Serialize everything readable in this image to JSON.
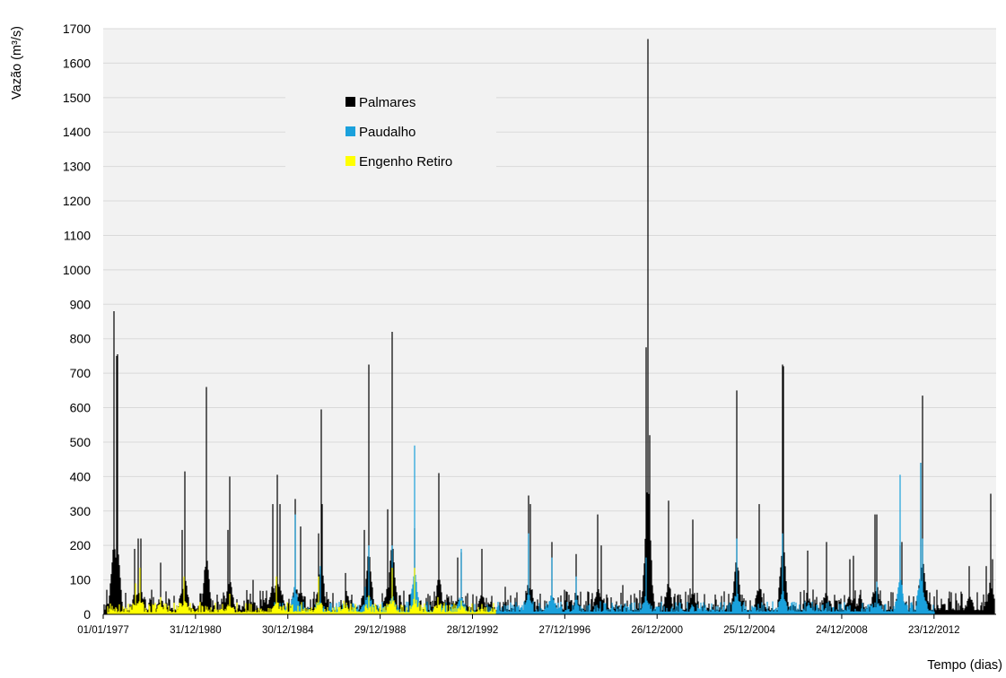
{
  "chart_data": {
    "type": "area",
    "title": "",
    "xlabel": "Tempo (dias)",
    "ylabel": "Vazão (m³/s)",
    "ylim": [
      0,
      1700
    ],
    "yticks": [
      0,
      100,
      200,
      300,
      400,
      500,
      600,
      700,
      800,
      900,
      1000,
      1100,
      1200,
      1300,
      1400,
      1500,
      1600,
      1700
    ],
    "xlim": [
      "1977-01-01",
      "2015-09-01"
    ],
    "xticks": [
      {
        "date": "1977-01-01",
        "label": "01/01/1977"
      },
      {
        "date": "1980-12-31",
        "label": "31/12/1980"
      },
      {
        "date": "1984-12-30",
        "label": "30/12/1984"
      },
      {
        "date": "1988-12-29",
        "label": "29/12/1988"
      },
      {
        "date": "1992-12-28",
        "label": "28/12/1992"
      },
      {
        "date": "1996-12-27",
        "label": "27/12/1996"
      },
      {
        "date": "2000-12-26",
        "label": "26/12/2000"
      },
      {
        "date": "2004-12-25",
        "label": "25/12/2004"
      },
      {
        "date": "2008-12-24",
        "label": "24/12/2008"
      },
      {
        "date": "2012-12-23",
        "label": "23/12/2012"
      }
    ],
    "grid": true,
    "legend_position": "top-left",
    "series": [
      {
        "name": "Palmares",
        "color": "#000000",
        "peaks": [
          [
            "1977-06-20",
            880
          ],
          [
            "1977-08-01",
            750
          ],
          [
            "1977-08-15",
            755
          ],
          [
            "1978-05-10",
            190
          ],
          [
            "1978-07-10",
            220
          ],
          [
            "1978-08-20",
            220
          ],
          [
            "1979-07-01",
            150
          ],
          [
            "1980-06-01",
            245
          ],
          [
            "1980-07-10",
            415
          ],
          [
            "1981-06-20",
            660
          ],
          [
            "1982-06-01",
            245
          ],
          [
            "1982-07-01",
            400
          ],
          [
            "1983-07-01",
            100
          ],
          [
            "1984-05-10",
            320
          ],
          [
            "1984-07-20",
            405
          ],
          [
            "1984-09-01",
            320
          ],
          [
            "1985-05-01",
            335
          ],
          [
            "1985-07-20",
            255
          ],
          [
            "1986-05-01",
            235
          ],
          [
            "1986-06-10",
            595
          ],
          [
            "1986-07-01",
            320
          ],
          [
            "1987-07-01",
            120
          ],
          [
            "1988-04-20",
            245
          ],
          [
            "1988-07-01",
            725
          ],
          [
            "1989-05-01",
            305
          ],
          [
            "1989-07-01",
            820
          ],
          [
            "1990-07-01",
            250
          ],
          [
            "1991-07-20",
            410
          ],
          [
            "1992-05-10",
            165
          ],
          [
            "1992-07-01",
            180
          ],
          [
            "1993-06-01",
            190
          ],
          [
            "1994-06-01",
            80
          ],
          [
            "1995-06-01",
            345
          ],
          [
            "1995-07-01",
            320
          ],
          [
            "1996-06-01",
            210
          ],
          [
            "1997-07-01",
            175
          ],
          [
            "1998-06-01",
            290
          ],
          [
            "1998-07-20",
            200
          ],
          [
            "1999-07-01",
            85
          ],
          [
            "2000-04-01",
            70
          ],
          [
            "2000-07-01",
            775
          ],
          [
            "2000-08-01",
            1670
          ],
          [
            "2000-09-01",
            520
          ],
          [
            "2001-07-01",
            330
          ],
          [
            "2002-06-01",
            75
          ],
          [
            "2002-07-20",
            275
          ],
          [
            "2004-06-15",
            650
          ],
          [
            "2005-06-01",
            320
          ],
          [
            "2006-06-01",
            725
          ],
          [
            "2006-06-15",
            720
          ],
          [
            "2006-07-01",
            180
          ],
          [
            "2007-07-01",
            185
          ],
          [
            "2008-05-01",
            210
          ],
          [
            "2009-05-01",
            160
          ],
          [
            "2009-07-01",
            170
          ],
          [
            "2010-06-01",
            290
          ],
          [
            "2010-07-01",
            290
          ],
          [
            "2011-07-01",
            200
          ],
          [
            "2011-08-01",
            210
          ],
          [
            "2012-06-01",
            440
          ],
          [
            "2012-07-01",
            635
          ],
          [
            "2014-07-01",
            140
          ],
          [
            "2015-04-01",
            140
          ],
          [
            "2015-06-01",
            350
          ],
          [
            "2015-07-01",
            160
          ]
        ]
      },
      {
        "name": "Paudalho",
        "color": "#1ba1dc",
        "peaks": [
          [
            "1985-05-01",
            290
          ],
          [
            "1986-06-01",
            140
          ],
          [
            "1988-05-01",
            80
          ],
          [
            "1988-07-01",
            200
          ],
          [
            "1989-07-01",
            200
          ],
          [
            "1990-07-01",
            490
          ],
          [
            "1992-07-01",
            190
          ],
          [
            "1995-06-01",
            235
          ],
          [
            "1996-06-01",
            165
          ],
          [
            "1997-07-01",
            110
          ],
          [
            "2000-07-01",
            165
          ],
          [
            "2004-06-15",
            220
          ],
          [
            "2006-06-01",
            235
          ],
          [
            "2010-07-01",
            95
          ],
          [
            "2011-07-01",
            405
          ],
          [
            "2012-06-01",
            440
          ],
          [
            "2012-07-01",
            220
          ]
        ]
      },
      {
        "name": "Engenho Retiro",
        "color": "#ffff00",
        "peaks": [
          [
            "1978-06-01",
            90
          ],
          [
            "1978-08-01",
            135
          ],
          [
            "1979-07-01",
            50
          ],
          [
            "1980-07-01",
            110
          ],
          [
            "1982-07-01",
            60
          ],
          [
            "1984-07-01",
            110
          ],
          [
            "1986-05-01",
            110
          ],
          [
            "1987-06-01",
            40
          ],
          [
            "1988-07-01",
            55
          ],
          [
            "1989-07-01",
            135
          ],
          [
            "1990-07-01",
            135
          ],
          [
            "1991-07-01",
            50
          ],
          [
            "1992-07-01",
            40
          ],
          [
            "1993-06-01",
            30
          ]
        ]
      }
    ]
  }
}
